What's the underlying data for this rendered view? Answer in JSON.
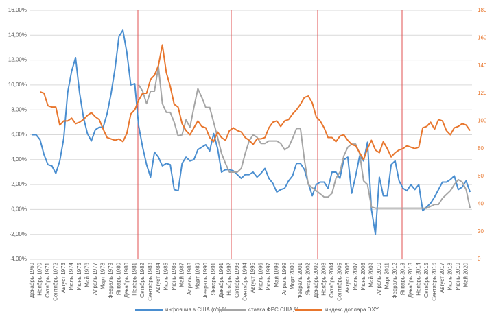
{
  "chart_data": {
    "type": "line",
    "categories": [
      "Декабрь 1969",
      null,
      "Ноябрь 1970",
      null,
      "Октябрь 1971",
      null,
      "Сентябрь 1972",
      null,
      "Август 1973",
      null,
      "Июль 1974",
      null,
      "Июнь 1975",
      null,
      "Май 1976",
      null,
      "Апрель 1977",
      null,
      "Март 1978",
      null,
      "Февраль 1979",
      null,
      "Январь 1980",
      null,
      "Декабрь 1980",
      null,
      "Ноябрь 1981",
      null,
      "Октябрь 1982",
      null,
      "Сентябрь 1983",
      null,
      "Август 1984",
      null,
      "Июль 1985",
      null,
      "Июнь 1986",
      null,
      "Май 1987",
      null,
      "Апрель 1988",
      null,
      "Март 1989",
      null,
      "Февраль 1990",
      null,
      "Январь 1991",
      null,
      "Декабрь 1991",
      null,
      "Ноябрь 1992",
      null,
      "Октябрь 1993",
      null,
      "Сентябрь 1994",
      null,
      "Август 1995",
      null,
      "Июль 1996",
      null,
      "Июнь 1997",
      null,
      "Май 1998",
      null,
      "Апрель 1999",
      null,
      "Март 2000",
      null,
      "Февраль 2001",
      null,
      "Январь 2002",
      null,
      "Декабрь 2002",
      null,
      "Ноябрь 2003",
      null,
      "Октябрь 2004",
      null,
      "Сентябрь 2005",
      null,
      "Август 2006",
      null,
      "Июль 2007",
      null,
      "Июнь 2008",
      null,
      "Май 2009",
      null,
      "Апрель 2010",
      null,
      "Март 2011",
      null,
      "Февраль 2012",
      null,
      "Январь 2013",
      null,
      "Декабрь 2013",
      null,
      "Ноябрь 2014",
      null,
      "Октябрь 2015",
      null,
      "Сентябрь 2016",
      null,
      "Август 2017",
      null,
      "Июль 2018",
      null,
      "Июнь 2019",
      null,
      "Май 2020",
      null
    ],
    "series": [
      {
        "name": "инфляция в США (г/г),%",
        "color": "#4a8ed0",
        "values": [
          6.0,
          6.0,
          5.6,
          4.4,
          3.6,
          3.5,
          2.9,
          3.9,
          5.7,
          9.4,
          11.1,
          12.2,
          9.4,
          7.4,
          6.1,
          5.5,
          6.4,
          6.6,
          6.6,
          7.7,
          9.3,
          11.3,
          13.9,
          14.4,
          12.6,
          10.0,
          10.1,
          6.7,
          5.0,
          3.6,
          2.6,
          4.6,
          4.2,
          3.5,
          3.7,
          3.6,
          1.6,
          1.5,
          3.7,
          4.2,
          3.9,
          4.0,
          4.8,
          5.0,
          5.2,
          4.7,
          6.1,
          4.9,
          3.0,
          3.2,
          3.2,
          3.1,
          2.8,
          2.5,
          2.8,
          2.8,
          3.0,
          2.6,
          2.9,
          3.3,
          2.5,
          2.1,
          1.4,
          1.6,
          1.7,
          2.3,
          2.7,
          3.7,
          3.7,
          3.2,
          2.1,
          1.1,
          2.0,
          2.2,
          2.2,
          1.7,
          3.0,
          3.0,
          2.5,
          4.0,
          4.2,
          1.3,
          2.7,
          4.3,
          3.9,
          5.4,
          0.0,
          -2.0,
          2.6,
          1.1,
          1.1,
          3.6,
          3.9,
          2.3,
          1.7,
          1.5,
          2.0,
          1.6,
          2.0,
          -0.1,
          0.2,
          0.5,
          1.0,
          1.6,
          2.2,
          2.2,
          2.4,
          2.7,
          1.6,
          1.8,
          2.3,
          1.4
        ]
      },
      {
        "name": "ставка ФРС США,%",
        "color": "#a5a5a5",
        "values": [
          null,
          null,
          null,
          null,
          null,
          null,
          null,
          null,
          null,
          null,
          null,
          null,
          null,
          null,
          null,
          null,
          null,
          null,
          null,
          null,
          null,
          null,
          null,
          null,
          null,
          null,
          null,
          10.0,
          9.5,
          8.5,
          9.5,
          9.5,
          11.5,
          8.5,
          7.8,
          7.8,
          7.0,
          5.9,
          6.0,
          7.2,
          6.6,
          8.2,
          9.7,
          9.0,
          8.2,
          8.2,
          7.0,
          5.8,
          4.5,
          3.7,
          3.0,
          3.0,
          3.0,
          3.3,
          4.5,
          5.5,
          6.0,
          5.8,
          5.3,
          5.3,
          5.5,
          5.5,
          5.5,
          5.3,
          4.8,
          5.0,
          5.7,
          6.5,
          6.5,
          4.0,
          2.0,
          1.75,
          1.5,
          1.25,
          1.0,
          1.0,
          1.3,
          2.5,
          3.0,
          4.3,
          5.0,
          5.25,
          5.25,
          4.5,
          2.3,
          2.0,
          0.2,
          0.1,
          0.1,
          0.1,
          0.1,
          0.1,
          0.1,
          0.1,
          0.1,
          0.1,
          0.1,
          0.1,
          0.1,
          0.1,
          0.1,
          0.25,
          0.4,
          0.4,
          0.9,
          1.2,
          1.5,
          2.0,
          2.4,
          2.2,
          1.6,
          0.1
        ]
      },
      {
        "name": "индекс доллара DXY",
        "color": "#e8762d",
        "axis": "y2",
        "values": [
          null,
          null,
          121,
          120,
          111,
          110,
          110,
          97,
          100,
          100,
          102,
          98,
          99,
          101,
          104,
          106,
          103,
          101,
          94,
          88,
          87,
          86,
          87,
          85,
          91,
          105,
          108,
          115,
          120,
          120,
          130,
          133,
          140,
          155,
          135,
          125,
          112,
          110,
          98,
          93,
          90,
          95,
          100,
          96,
          95,
          88,
          85,
          92,
          88,
          86,
          93,
          95,
          93,
          92,
          88,
          86,
          83,
          87,
          87,
          88,
          95,
          99,
          100,
          96,
          100,
          101,
          105,
          108,
          112,
          117,
          118,
          113,
          103,
          100,
          95,
          88,
          88,
          85,
          89,
          90,
          86,
          83,
          82,
          77,
          72,
          80,
          86,
          79,
          77,
          85,
          80,
          74,
          77,
          79,
          80,
          82,
          81,
          80,
          81,
          95,
          96,
          99,
          94,
          101,
          100,
          93,
          90,
          95,
          96,
          98,
          97,
          93
        ]
      }
    ],
    "ylim": [
      -4,
      16
    ],
    "yticks": [
      {
        "value": -4,
        "label": "-4,00%"
      },
      {
        "value": -2,
        "label": "-2,00%"
      },
      {
        "value": 0,
        "label": "0,00%"
      },
      {
        "value": 2,
        "label": "2,00%"
      },
      {
        "value": 4,
        "label": "4,00%"
      },
      {
        "value": 6,
        "label": "6,00%"
      },
      {
        "value": 8,
        "label": "8,00%"
      },
      {
        "value": 10,
        "label": "10,00%"
      },
      {
        "value": 12,
        "label": "12,00%"
      },
      {
        "value": 14,
        "label": "14,00%"
      },
      {
        "value": 16,
        "label": "16,00%"
      }
    ],
    "y2lim": [
      0,
      180
    ],
    "y2ticks": [
      0,
      20,
      40,
      60,
      80,
      100,
      120,
      140,
      160,
      180
    ],
    "grid": true
  }
}
